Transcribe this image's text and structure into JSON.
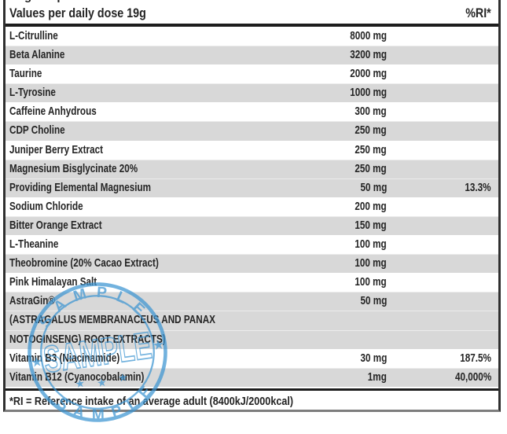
{
  "table": {
    "top_fragment": "g p",
    "header": {
      "left": "Values per daily dose 19g",
      "right": "%RI*"
    },
    "rows": [
      {
        "name": "L-Citrulline",
        "amount": "8000 mg",
        "ri": "",
        "shade": "white"
      },
      {
        "name": "Beta Alanine",
        "amount": "3200 mg",
        "ri": "",
        "shade": "gray"
      },
      {
        "name": "Taurine",
        "amount": "2000 mg",
        "ri": "",
        "shade": "white"
      },
      {
        "name": "L-Tyrosine",
        "amount": "1000 mg",
        "ri": "",
        "shade": "gray"
      },
      {
        "name": "Caffeine Anhydrous",
        "amount": "300 mg",
        "ri": "",
        "shade": "white"
      },
      {
        "name": "CDP Choline",
        "amount": "250 mg",
        "ri": "",
        "shade": "gray"
      },
      {
        "name": "Juniper Berry Extract",
        "amount": "250 mg",
        "ri": "",
        "shade": "white"
      },
      {
        "name": "Magnesium Bisglycinate 20%",
        "amount": "250 mg",
        "ri": "",
        "shade": "gray"
      },
      {
        "name": "Providing Elemental Magnesium",
        "amount": "50 mg",
        "ri": "13.3%",
        "shade": "gray"
      },
      {
        "name": "Sodium Chloride",
        "amount": "200 mg",
        "ri": "",
        "shade": "white"
      },
      {
        "name": "Bitter Orange Extract",
        "amount": "150 mg",
        "ri": "",
        "shade": "gray"
      },
      {
        "name": "L-Theanine",
        "amount": "100 mg",
        "ri": "",
        "shade": "white"
      },
      {
        "name": "Theobromine (20% Cacao Extract)",
        "amount": "100 mg",
        "ri": "",
        "shade": "gray"
      },
      {
        "name": "Pink Himalayan Salt",
        "amount": "100 mg",
        "ri": "",
        "shade": "white"
      },
      {
        "name": "AstraGin®",
        "amount": "50 mg",
        "ri": "",
        "shade": "gray"
      },
      {
        "name": "(ASTRAGALUS MEMBRANACEUS AND PANAX",
        "amount": "",
        "ri": "",
        "shade": "gray"
      },
      {
        "name": "NOTOGINSENG) ROOT EXTRACTS)",
        "amount": "",
        "ri": "",
        "shade": "gray"
      },
      {
        "name": "Vitamin B3 (Niacinamide)",
        "amount": "30 mg",
        "ri": "187.5%",
        "shade": "white"
      },
      {
        "name": "Vitamin B12 (Cyanocobalamin)",
        "amount": "1mg",
        "ri": "40,000%",
        "shade": "gray"
      }
    ],
    "footnote": "*RI = Reference intake of an average adult (8400kJ/2000kcal)"
  },
  "watermark": {
    "word": "SAMPLE",
    "star": "★",
    "color": "#3d95d2"
  },
  "colors": {
    "row_gray": "#d8d8d8",
    "text": "#242424",
    "border": "#2f2f2f",
    "stamp_blue": "#3d95d2"
  }
}
